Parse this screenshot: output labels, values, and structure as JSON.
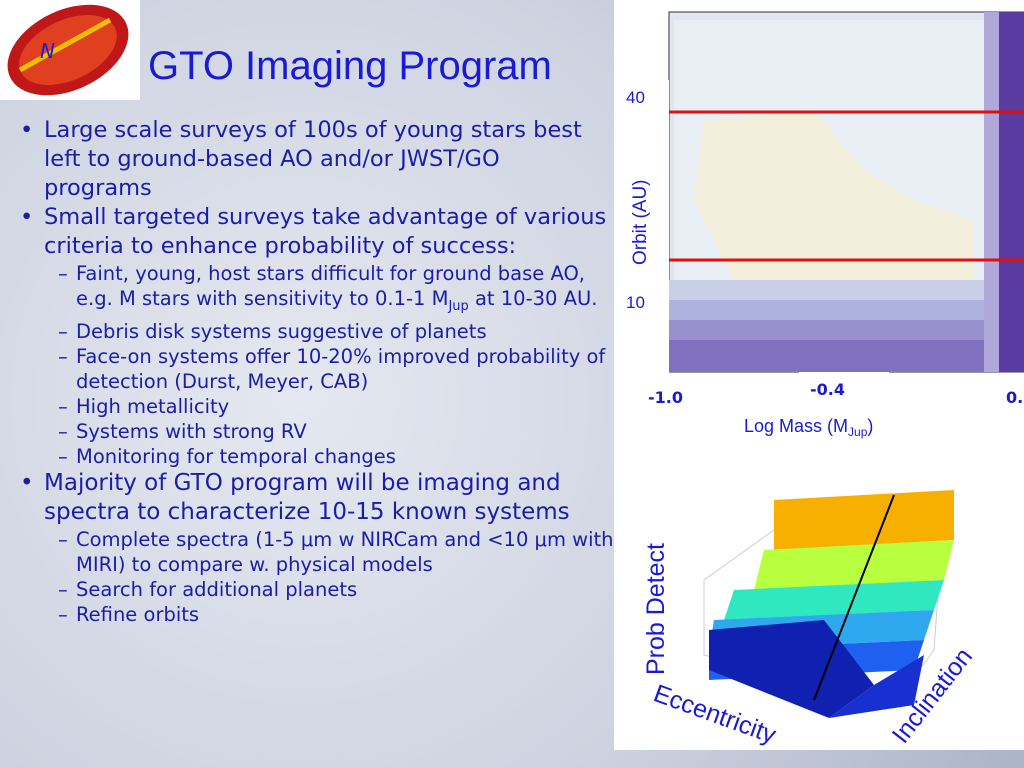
{
  "title": "GTO Imaging Program",
  "bullets": [
    {
      "text": "Large scale surveys of 100s of young stars best left to ground-based AO and/or JWST/GO programs",
      "sub": []
    },
    {
      "text": "Small targeted surveys  take advantage of  various criteria  to enhance probability of success:",
      "sub": [
        {
          "text": "Faint, young, host stars difficult for ground base AO, e.g. M stars with sensitivity to 0.1-1 M",
          "subscript": "Jup",
          "tail": " at 10-30 AU."
        },
        {
          "text": "Debris disk systems suggestive of planets"
        },
        {
          "text": "Face-on systems offer 10-20% improved probability of detection (Durst, Meyer, CAB)"
        },
        {
          "text": "High metallicity"
        },
        {
          "text": "Systems  with strong RV"
        },
        {
          "text": "Monitoring for temporal changes"
        }
      ]
    },
    {
      "text": "Majority of GTO program will be imaging and spectra to characterize 10-15 known systems",
      "sub": [
        {
          "text": "Complete spectra (1-5 μm w NIRCam and <10 μm with MIRI) to compare w. physical models"
        },
        {
          "text": "Search for additional planets"
        },
        {
          "text": "Refine orbits"
        }
      ]
    }
  ],
  "contour_plot": {
    "y_label": "Orbit (AU)",
    "y_ticks": [
      "40",
      "10"
    ],
    "x_ticks": [
      "-1.0",
      "-0.4",
      "0."
    ],
    "x_label": "Log Mass (M",
    "x_label_subscript": "Jup",
    "x_label_tail": ")"
  },
  "surface_plot": {
    "z_label": "Prob Detect",
    "x_label": "Eccentricity",
    "y_label": "Inclination"
  }
}
